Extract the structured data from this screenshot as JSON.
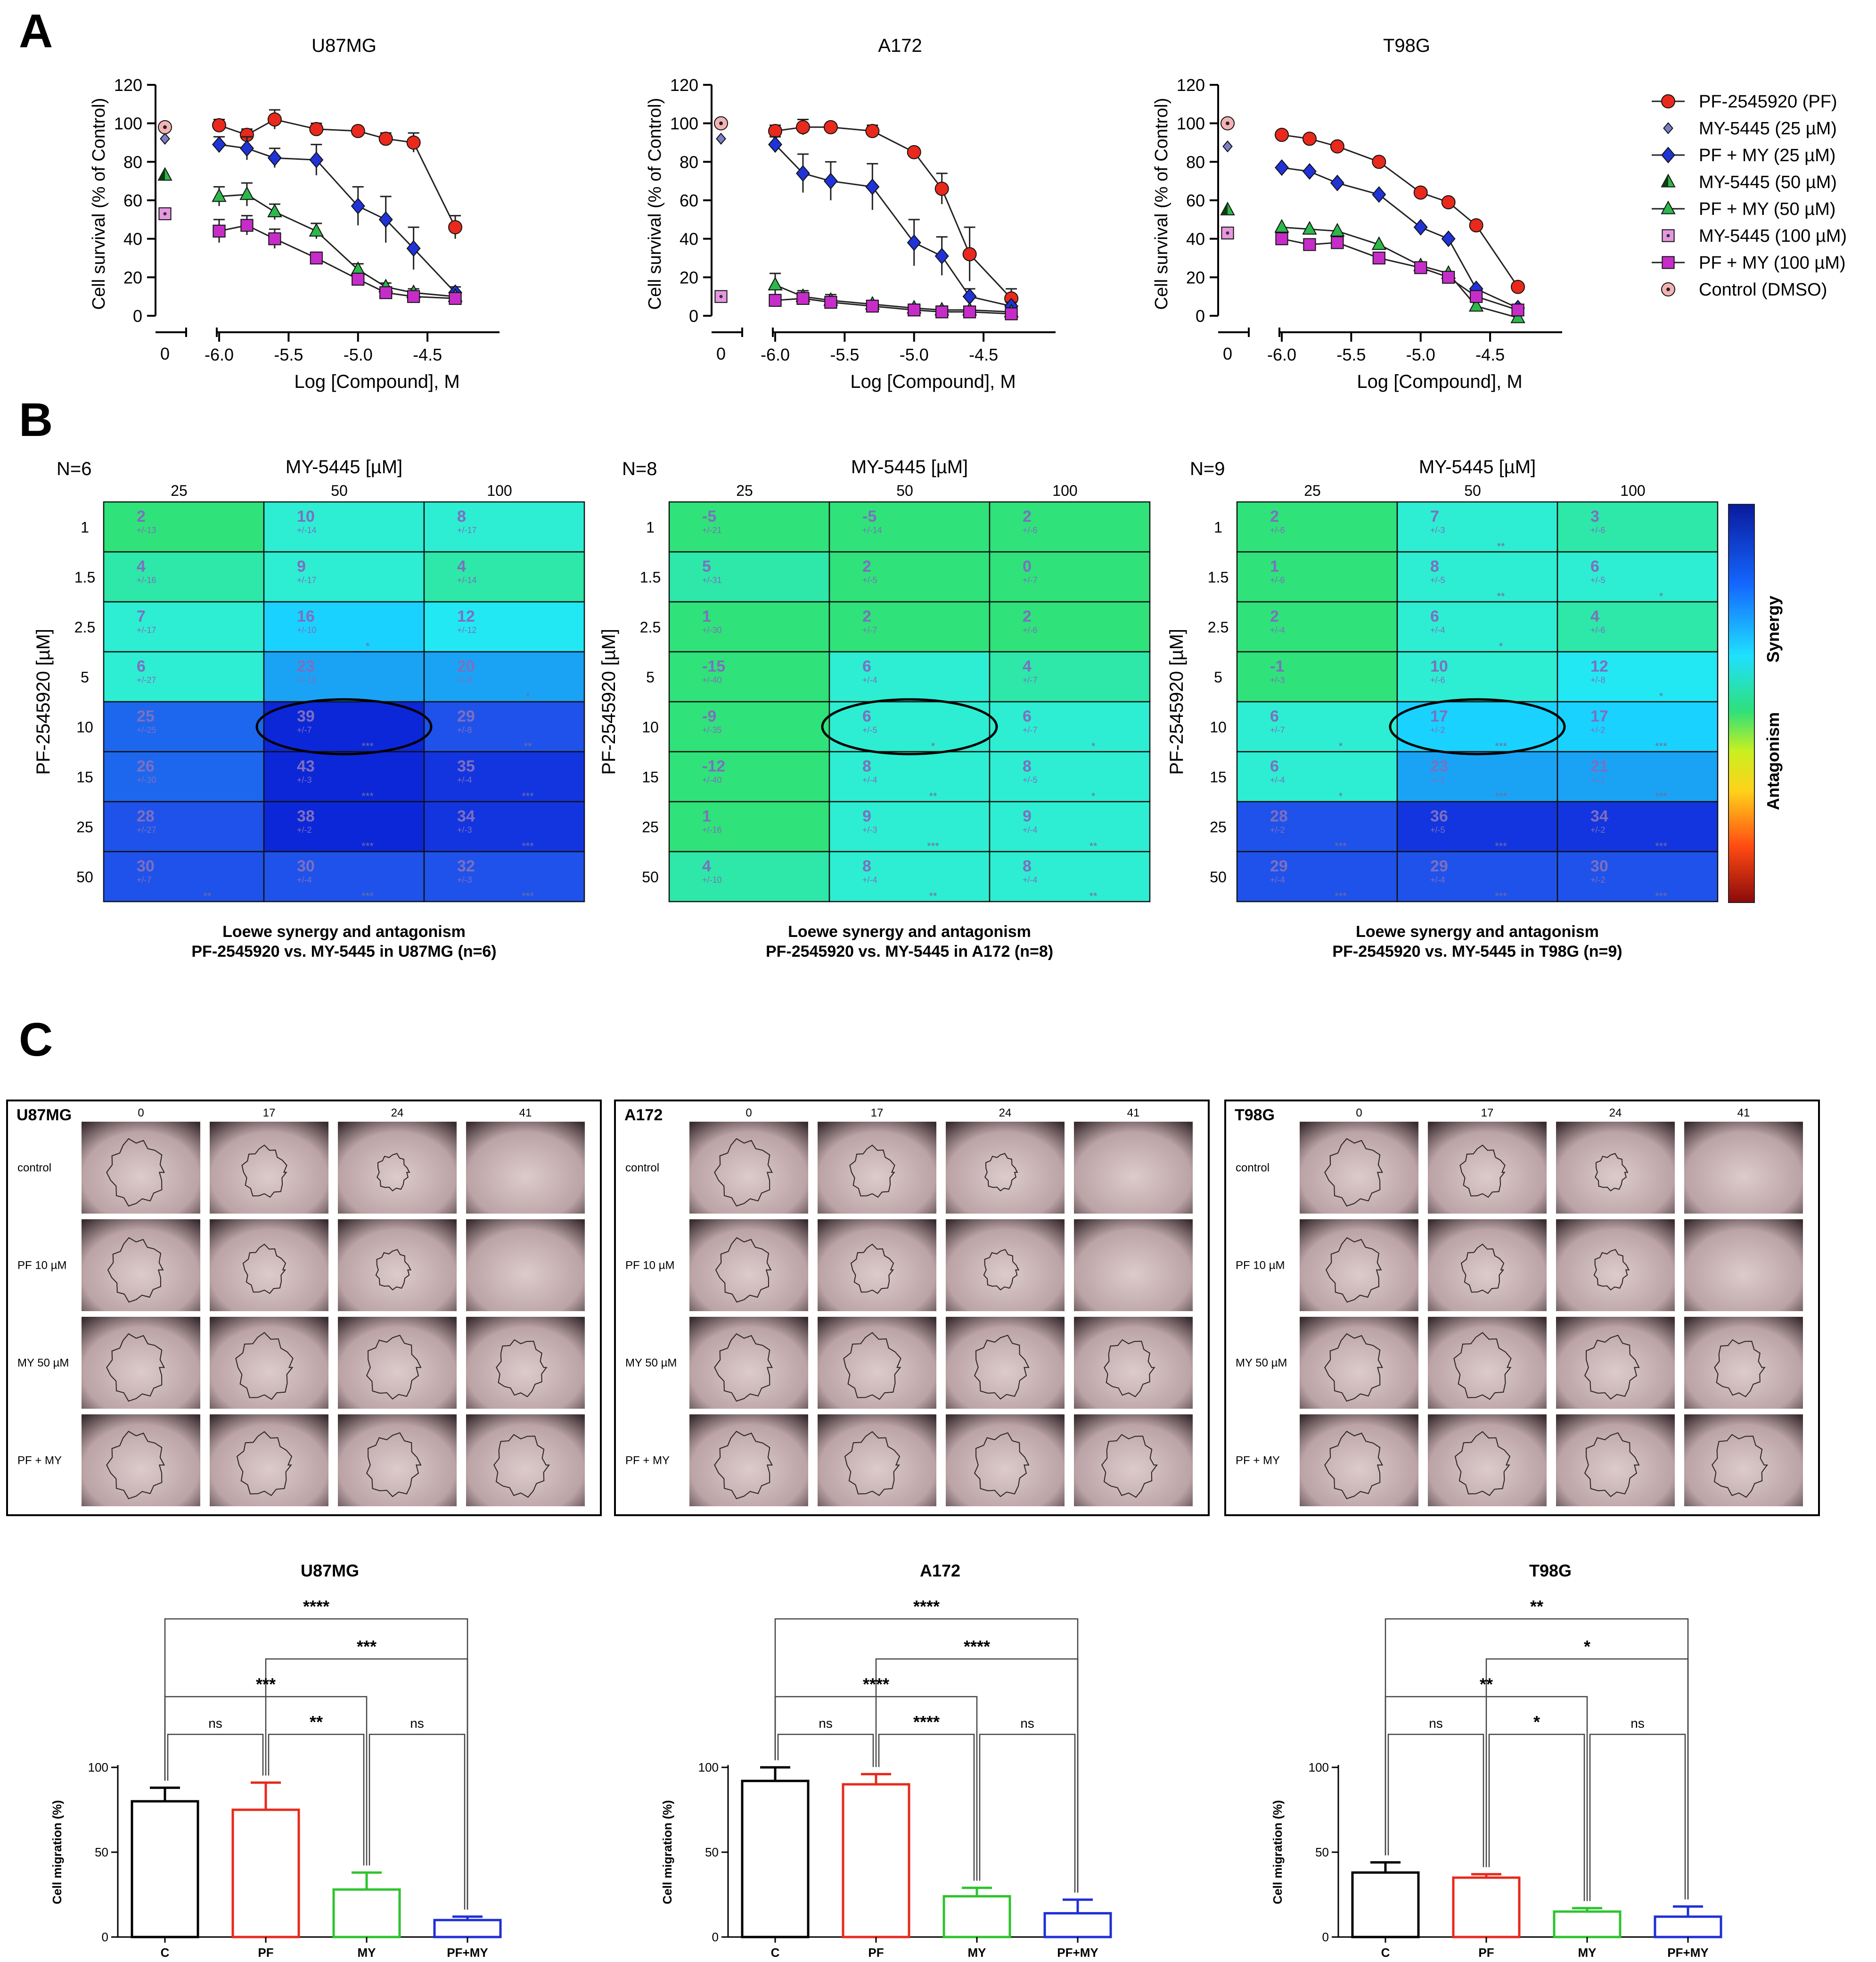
{
  "panel_labels": [
    "A",
    "B",
    "C"
  ],
  "panelA": {
    "x_zero_label": "0",
    "x_tick_labels": [
      "-6.0",
      "-5.5",
      "-5.0",
      "-4.5"
    ],
    "y_tick_labels": [
      "0",
      "20",
      "40",
      "60",
      "80",
      "100",
      "120"
    ],
    "ylabel": "Cell survival (% of Control)",
    "xlabel": "Log [Compound], M",
    "legend": [
      {
        "name": "PF-2545920 (PF)",
        "marker": "circle",
        "color": "#e8291c"
      },
      {
        "name": "MY-5445 (25 µM)",
        "marker": "diamond-small",
        "color": "#7b7fc8"
      },
      {
        "name": "PF + MY (25 µM)",
        "marker": "diamond",
        "color": "#1f33d6"
      },
      {
        "name": "MY-5445 (50 µM)",
        "marker": "triangle-half",
        "color": "#2db84b"
      },
      {
        "name": "PF + MY (50 µM)",
        "marker": "triangle",
        "color": "#2db84b"
      },
      {
        "name": "MY-5445 (100 µM)",
        "marker": "square-dot",
        "color": "#e597e0"
      },
      {
        "name": "PF + MY (100 µM)",
        "marker": "square",
        "color": "#c62dc8"
      },
      {
        "name": "Control (DMSO)",
        "marker": "circle-dot",
        "color": "#f3b3b3"
      }
    ]
  },
  "chart_data": [
    {
      "type": "scatter",
      "title": "U87MG",
      "xlabel": "Log [Compound], M",
      "ylabel": "Cell survival (% of Control)",
      "xlim": [
        -6.1,
        -4.1
      ],
      "ylim": [
        0,
        120
      ],
      "x": [
        -6.0,
        -5.8,
        -5.6,
        -5.3,
        -5.0,
        -4.8,
        -4.6,
        -4.3
      ],
      "series": [
        {
          "name": "PF-2545920 (PF)",
          "values": [
            99,
            94,
            102,
            97,
            96,
            92,
            90,
            46
          ],
          "err": [
            3,
            3,
            5,
            3,
            2,
            3,
            5,
            6
          ]
        },
        {
          "name": "PF + MY (25 µM)",
          "values": [
            89,
            87,
            82,
            81,
            57,
            50,
            35,
            12
          ],
          "err": [
            4,
            6,
            5,
            8,
            10,
            12,
            11,
            3
          ]
        },
        {
          "name": "PF + MY (50 µM)",
          "values": [
            62,
            63,
            54,
            44,
            24,
            15,
            12,
            10
          ],
          "err": [
            5,
            6,
            4,
            4,
            3,
            2,
            2,
            2
          ]
        },
        {
          "name": "PF + MY (100 µM)",
          "values": [
            44,
            47,
            40,
            30,
            19,
            12,
            10,
            9
          ],
          "err": [
            6,
            5,
            5,
            3,
            3,
            2,
            2,
            2
          ]
        }
      ],
      "controls": [
        {
          "name": "MY-5445 (25 µM)",
          "x": 0,
          "value": 92
        },
        {
          "name": "MY-5445 (50 µM)",
          "x": 0,
          "value": 73
        },
        {
          "name": "MY-5445 (100 µM)",
          "x": 0,
          "value": 53
        },
        {
          "name": "Control (DMSO)",
          "x": 0,
          "value": 98
        }
      ]
    },
    {
      "type": "scatter",
      "title": "A172",
      "xlabel": "Log [Compound], M",
      "ylabel": "Cell survival (% of Control)",
      "xlim": [
        -6.1,
        -4.1
      ],
      "ylim": [
        0,
        120
      ],
      "x": [
        -6.0,
        -5.8,
        -5.6,
        -5.3,
        -5.0,
        -4.8,
        -4.6,
        -4.3
      ],
      "series": [
        {
          "name": "PF-2545920 (PF)",
          "values": [
            96,
            98,
            98,
            96,
            85,
            66,
            32,
            9
          ],
          "err": [
            3,
            4,
            2,
            3,
            2,
            8,
            14,
            5
          ]
        },
        {
          "name": "PF + MY (25 µM)",
          "values": [
            89,
            74,
            70,
            67,
            38,
            31,
            10,
            5
          ],
          "err": [
            4,
            10,
            10,
            12,
            12,
            10,
            4,
            2
          ]
        },
        {
          "name": "PF + MY (50 µM)",
          "values": [
            16,
            10,
            8,
            6,
            4,
            3,
            3,
            2
          ],
          "err": [
            6,
            3,
            3,
            2,
            2,
            2,
            1,
            1
          ]
        },
        {
          "name": "PF + MY (100 µM)",
          "values": [
            8,
            9,
            7,
            5,
            3,
            2,
            2,
            1
          ],
          "err": [
            3,
            3,
            2,
            2,
            1,
            1,
            1,
            1
          ]
        }
      ],
      "controls": [
        {
          "name": "MY-5445 (25 µM)",
          "x": 0,
          "value": 92
        },
        {
          "name": "MY-5445 (100 µM)",
          "x": 0,
          "value": 10
        },
        {
          "name": "Control (DMSO)",
          "x": 0,
          "value": 100
        }
      ]
    },
    {
      "type": "scatter",
      "title": "T98G",
      "xlabel": "Log [Compound], M",
      "ylabel": "Cell survival (% of Control)",
      "xlim": [
        -6.1,
        -4.1
      ],
      "ylim": [
        0,
        120
      ],
      "x": [
        -6.0,
        -5.8,
        -5.6,
        -5.3,
        -5.0,
        -4.8,
        -4.6,
        -4.3
      ],
      "series": [
        {
          "name": "PF-2545920 (PF)",
          "values": [
            94,
            92,
            88,
            80,
            64,
            59,
            47,
            15
          ],
          "err": [
            1,
            1,
            1,
            1,
            1,
            1,
            1,
            1
          ]
        },
        {
          "name": "PF + MY (25 µM)",
          "values": [
            77,
            75,
            69,
            63,
            46,
            40,
            14,
            4
          ],
          "err": [
            1,
            1,
            1,
            1,
            1,
            1,
            1,
            1
          ]
        },
        {
          "name": "PF + MY (50 µM)",
          "values": [
            46,
            45,
            44,
            37,
            26,
            22,
            5,
            -1
          ],
          "err": [
            1,
            1,
            1,
            1,
            1,
            1,
            1,
            1
          ]
        },
        {
          "name": "PF + MY (100 µM)",
          "values": [
            40,
            37,
            38,
            30,
            25,
            20,
            10,
            3
          ],
          "err": [
            1,
            1,
            1,
            1,
            1,
            1,
            1,
            1
          ]
        }
      ],
      "controls": [
        {
          "name": "MY-5445 (25 µM)",
          "x": 0,
          "value": 88
        },
        {
          "name": "MY-5445 (50 µM)",
          "x": 0,
          "value": 55
        },
        {
          "name": "MY-5445 (100 µM)",
          "x": 0,
          "value": 43
        },
        {
          "name": "Control (DMSO)",
          "x": 0,
          "value": 100
        }
      ]
    },
    {
      "type": "heatmap",
      "title": "Loewe synergy and antagonism",
      "subtitle": "PF-2545920 vs. MY-5445 in U87MG (n=6)",
      "n_label": "N=6",
      "xlabel": "MY-5445 [µM]",
      "ylabel": "PF-2545920 [µM]",
      "columns": [
        "25",
        "50",
        "100"
      ],
      "rows": [
        "1",
        "1.5",
        "2.5",
        "5",
        "10",
        "15",
        "25",
        "50"
      ],
      "values": [
        [
          2,
          10,
          8
        ],
        [
          4,
          9,
          4
        ],
        [
          7,
          16,
          12
        ],
        [
          6,
          23,
          20
        ],
        [
          25,
          39,
          29
        ],
        [
          26,
          43,
          35
        ],
        [
          28,
          38,
          34
        ],
        [
          30,
          30,
          32
        ]
      ],
      "errors": [
        [
          "+/-13",
          "+/-14",
          "+/-17"
        ],
        [
          "+/-16",
          "+/-17",
          "+/-14"
        ],
        [
          "+/-17",
          "+/-10",
          "+/-12"
        ],
        [
          "+/-27",
          "+/-10",
          "+/-8"
        ],
        [
          "+/-25",
          "+/-7",
          "+/-8"
        ],
        [
          "+/-30",
          "+/-3",
          "+/-4"
        ],
        [
          "+/-27",
          "+/-2",
          "+/-3"
        ],
        [
          "+/-7",
          "+/-4",
          "+/-3"
        ]
      ],
      "stars": [
        [
          "",
          "",
          ""
        ],
        [
          "",
          "",
          ""
        ],
        [
          "",
          "*",
          ""
        ],
        [
          "",
          "",
          "*"
        ],
        [
          "",
          "***",
          "**"
        ],
        [
          "",
          "***",
          "***"
        ],
        [
          "",
          "***",
          "***"
        ],
        [
          "**",
          "***",
          "***"
        ]
      ],
      "highlight": {
        "row": "10",
        "col": "50"
      }
    },
    {
      "type": "heatmap",
      "title": "Loewe synergy and antagonism",
      "subtitle": "PF-2545920 vs. MY-5445 in A172 (n=8)",
      "n_label": "N=8",
      "xlabel": "MY-5445 [µM]",
      "ylabel": "PF-2545920 [µM]",
      "columns": [
        "25",
        "50",
        "100"
      ],
      "rows": [
        "1",
        "1.5",
        "2.5",
        "5",
        "10",
        "15",
        "25",
        "50"
      ],
      "values": [
        [
          -5,
          -5,
          2
        ],
        [
          5,
          2,
          0
        ],
        [
          1,
          2,
          2
        ],
        [
          -15,
          6,
          4
        ],
        [
          -9,
          6,
          6
        ],
        [
          -12,
          8,
          8
        ],
        [
          1,
          9,
          9
        ],
        [
          4,
          8,
          8
        ]
      ],
      "errors": [
        [
          "+/-21",
          "+/-14",
          "+/-6"
        ],
        [
          "+/-31",
          "+/-5",
          "+/-7"
        ],
        [
          "+/-30",
          "+/-7",
          "+/-6"
        ],
        [
          "+/-40",
          "+/-4",
          "+/-7"
        ],
        [
          "+/-35",
          "+/-5",
          "+/-7"
        ],
        [
          "+/-40",
          "+/-4",
          "+/-5"
        ],
        [
          "+/-16",
          "+/-3",
          "+/-4"
        ],
        [
          "+/-10",
          "+/-4",
          "+/-4"
        ]
      ],
      "stars": [
        [
          "",
          "",
          ""
        ],
        [
          "",
          "",
          ""
        ],
        [
          "",
          "",
          ""
        ],
        [
          "",
          "",
          ""
        ],
        [
          "",
          "*",
          "*"
        ],
        [
          "",
          "**",
          "*"
        ],
        [
          "",
          "***",
          "**"
        ],
        [
          "",
          "**",
          "**"
        ]
      ],
      "highlight": {
        "row": "10",
        "col": "50"
      }
    },
    {
      "type": "heatmap",
      "title": "Loewe synergy and antagonism",
      "subtitle": "PF-2545920 vs. MY-5445 in T98G (n=9)",
      "n_label": "N=9",
      "xlabel": "MY-5445 [µM]",
      "ylabel": "PF-2545920 [µM]",
      "columns": [
        "25",
        "50",
        "100"
      ],
      "rows": [
        "1",
        "1.5",
        "2.5",
        "5",
        "10",
        "15",
        "25",
        "50"
      ],
      "values": [
        [
          2,
          7,
          3
        ],
        [
          1,
          8,
          6
        ],
        [
          2,
          6,
          4
        ],
        [
          -1,
          10,
          12
        ],
        [
          6,
          17,
          17
        ],
        [
          6,
          23,
          21
        ],
        [
          28,
          36,
          34
        ],
        [
          29,
          29,
          30
        ]
      ],
      "errors": [
        [
          "+/-6",
          "+/-3",
          "+/-6"
        ],
        [
          "+/-6",
          "+/-5",
          "+/-5"
        ],
        [
          "+/-4",
          "+/-4",
          "+/-6"
        ],
        [
          "+/-3",
          "+/-6",
          "+/-8"
        ],
        [
          "+/-7",
          "+/-2",
          "+/-2"
        ],
        [
          "+/-4",
          "+/-2",
          "+/-1"
        ],
        [
          "+/-2",
          "+/-5",
          "+/-2"
        ],
        [
          "+/-4",
          "+/-4",
          "+/-2"
        ]
      ],
      "stars": [
        [
          "",
          "**",
          ""
        ],
        [
          "",
          "**",
          "*"
        ],
        [
          "",
          "*",
          ""
        ],
        [
          "",
          "",
          "*"
        ],
        [
          "*",
          "***",
          "***"
        ],
        [
          "*",
          "***",
          "***"
        ],
        [
          "***",
          "***",
          "***"
        ],
        [
          "***",
          "***",
          "***"
        ]
      ],
      "highlight": {
        "row": "10",
        "col": "50"
      },
      "colorbar": {
        "top_label": "Synergy",
        "bottom_label": "Antagonism"
      }
    },
    {
      "type": "bar",
      "title": "U87MG",
      "ylabel": "Cell migration (%)",
      "ylim": [
        0,
        100
      ],
      "y_tick_labels": [
        "0",
        "50",
        "100"
      ],
      "categories": [
        "C",
        "PF",
        "MY",
        "PF+MY"
      ],
      "values": [
        80,
        75,
        28,
        10
      ],
      "err": [
        8,
        16,
        10,
        2
      ],
      "colors": [
        "#000000",
        "#e8291c",
        "#2ec42e",
        "#1f2fd6"
      ],
      "comparisons": [
        {
          "a": "C",
          "b": "PF+MY",
          "label": "****"
        },
        {
          "a": "PF",
          "b": "PF+MY",
          "label": "***"
        },
        {
          "a": "C",
          "b": "MY",
          "label": "***"
        },
        {
          "a": "C",
          "b": "PF",
          "label": "ns"
        },
        {
          "a": "PF",
          "b": "MY",
          "label": "**"
        },
        {
          "a": "MY",
          "b": "PF+MY",
          "label": "ns"
        }
      ]
    },
    {
      "type": "bar",
      "title": "A172",
      "ylabel": "Cell migration (%)",
      "ylim": [
        0,
        100
      ],
      "y_tick_labels": [
        "0",
        "50",
        "100"
      ],
      "categories": [
        "C",
        "PF",
        "MY",
        "PF+MY"
      ],
      "values": [
        92,
        90,
        24,
        14
      ],
      "err": [
        8,
        6,
        5,
        8
      ],
      "colors": [
        "#000000",
        "#e8291c",
        "#2ec42e",
        "#1f2fd6"
      ],
      "comparisons": [
        {
          "a": "C",
          "b": "PF+MY",
          "label": "****"
        },
        {
          "a": "PF",
          "b": "PF+MY",
          "label": "****"
        },
        {
          "a": "C",
          "b": "MY",
          "label": "****"
        },
        {
          "a": "C",
          "b": "PF",
          "label": "ns"
        },
        {
          "a": "PF",
          "b": "MY",
          "label": "****"
        },
        {
          "a": "MY",
          "b": "PF+MY",
          "label": "ns"
        }
      ]
    },
    {
      "type": "bar",
      "title": "T98G",
      "ylabel": "Cell migration (%)",
      "ylim": [
        0,
        100
      ],
      "y_tick_labels": [
        "0",
        "50",
        "100"
      ],
      "categories": [
        "C",
        "PF",
        "MY",
        "PF+MY"
      ],
      "values": [
        38,
        35,
        15,
        12
      ],
      "err": [
        6,
        2,
        2,
        6
      ],
      "colors": [
        "#000000",
        "#e8291c",
        "#2ec42e",
        "#1f2fd6"
      ],
      "comparisons": [
        {
          "a": "C",
          "b": "PF+MY",
          "label": "**"
        },
        {
          "a": "PF",
          "b": "PF+MY",
          "label": "*"
        },
        {
          "a": "C",
          "b": "MY",
          "label": "**"
        },
        {
          "a": "C",
          "b": "PF",
          "label": "ns"
        },
        {
          "a": "PF",
          "b": "MY",
          "label": "*"
        },
        {
          "a": "MY",
          "b": "PF+MY",
          "label": "ns"
        }
      ]
    }
  ],
  "panelC": {
    "timepoints": [
      "0",
      "17",
      "24",
      "41"
    ],
    "conditions": [
      "control",
      "PF 10 µM",
      "MY 50 µM",
      "PF + MY"
    ],
    "cell_lines": [
      "U87MG",
      "A172",
      "T98G"
    ]
  }
}
